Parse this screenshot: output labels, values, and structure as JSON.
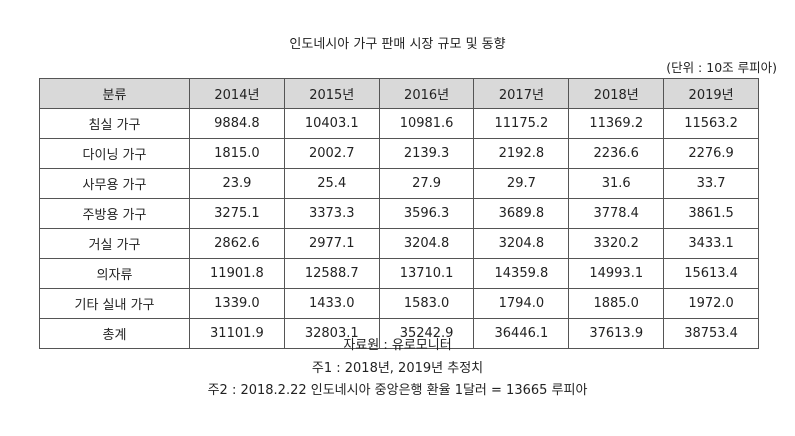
{
  "title": "인도네시아 가구 판매 시장 규모 및 동향",
  "unit": "(단위 : 10조 루피아)",
  "table": {
    "headers": [
      "분류",
      "2014년",
      "2015년",
      "2016년",
      "2017년",
      "2018년",
      "2019년"
    ],
    "rows": [
      [
        "침실 가구",
        "9884.8",
        "10403.1",
        "10981.6",
        "11175.2",
        "11369.2",
        "11563.2"
      ],
      [
        "다이닝 가구",
        "1815.0",
        "2002.7",
        "2139.3",
        "2192.8",
        "2236.6",
        "2276.9"
      ],
      [
        "사무용 가구",
        "23.9",
        "25.4",
        "27.9",
        "29.7",
        "31.6",
        "33.7"
      ],
      [
        "주방용 가구",
        "3275.1",
        "3373.3",
        "3596.3",
        "3689.8",
        "3778.4",
        "3861.5"
      ],
      [
        "거실 가구",
        "2862.6",
        "2977.1",
        "3204.8",
        "3204.8",
        "3320.2",
        "3433.1"
      ],
      [
        "의자류",
        "11901.8",
        "12588.7",
        "13710.1",
        "14359.8",
        "14993.1",
        "15613.4"
      ],
      [
        "기타 실내 가구",
        "1339.0",
        "1433.0",
        "1583.0",
        "1794.0",
        "1885.0",
        "1972.0"
      ],
      [
        "총계",
        "31101.9",
        "32803.1",
        "35242.9",
        "36446.1",
        "37613.9",
        "38753.4"
      ]
    ]
  },
  "notes": {
    "source": "자료원 : 유로모니터",
    "note1": "주1 : 2018년, 2019년 추정치",
    "note2": "주2 : 2018.2.22 인도네시아 중앙은행 환율 1달러 = 13665 루피아"
  }
}
